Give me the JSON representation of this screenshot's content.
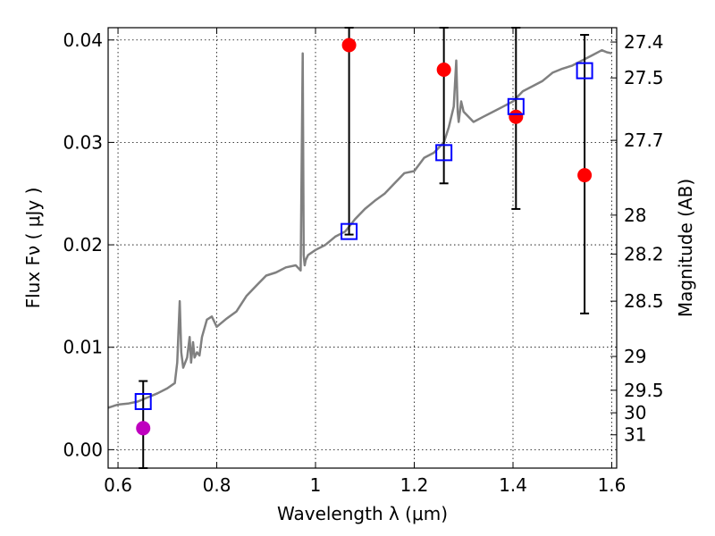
{
  "chart_data": {
    "type": "scatter",
    "title": "",
    "xlabel": "Wavelength  λ (μm)",
    "ylabel": "Flux  Fν  ( μJy )",
    "y2label": "Magnitude (AB)",
    "xlim": [
      0.58,
      1.61
    ],
    "ylim": [
      -0.0018,
      0.0412
    ],
    "grid": true,
    "x_ticks": [
      0.6,
      0.8,
      1.0,
      1.2,
      1.4,
      1.6
    ],
    "x_tick_labels": [
      "0.6",
      "0.8",
      "1",
      "1.2",
      "1.4",
      "1.6"
    ],
    "y_ticks": [
      0.0,
      0.01,
      0.02,
      0.03,
      0.04
    ],
    "y_tick_labels": [
      "0.00",
      "0.01",
      "0.02",
      "0.03",
      "0.04"
    ],
    "y2_ticks": [
      {
        "label": "27.4",
        "flux": 0.0398
      },
      {
        "label": "27.5",
        "flux": 0.0363
      },
      {
        "label": "27.7",
        "flux": 0.0302
      },
      {
        "label": "28",
        "flux": 0.0229
      },
      {
        "label": "28.2",
        "flux": 0.0191
      },
      {
        "label": "28.5",
        "flux": 0.0145
      },
      {
        "label": "29",
        "flux": 0.0091
      },
      {
        "label": "29.5",
        "flux": 0.0058
      },
      {
        "label": "30",
        "flux": 0.0036
      },
      {
        "label": "31",
        "flux": 0.00145
      }
    ],
    "series": [
      {
        "marker": "line",
        "color": "#808080",
        "x": [
          0.58,
          0.6,
          0.62,
          0.64,
          0.66,
          0.68,
          0.7,
          0.715,
          0.72,
          0.725,
          0.728,
          0.732,
          0.74,
          0.745,
          0.748,
          0.752,
          0.755,
          0.76,
          0.765,
          0.77,
          0.78,
          0.79,
          0.8,
          0.82,
          0.84,
          0.86,
          0.88,
          0.9,
          0.92,
          0.94,
          0.96,
          0.97,
          0.974,
          0.976,
          0.978,
          0.98,
          0.985,
          1.0,
          1.02,
          1.04,
          1.06,
          1.08,
          1.1,
          1.12,
          1.14,
          1.16,
          1.18,
          1.2,
          1.22,
          1.24,
          1.26,
          1.27,
          1.28,
          1.285,
          1.288,
          1.29,
          1.295,
          1.3,
          1.32,
          1.34,
          1.36,
          1.38,
          1.4,
          1.42,
          1.44,
          1.46,
          1.48,
          1.5,
          1.52,
          1.54,
          1.56,
          1.58,
          1.59,
          1.6
        ],
        "values": [
          0.0041,
          0.0044,
          0.0045,
          0.0047,
          0.0051,
          0.0055,
          0.006,
          0.0065,
          0.0085,
          0.0145,
          0.0095,
          0.008,
          0.009,
          0.011,
          0.0085,
          0.0105,
          0.009,
          0.0095,
          0.0092,
          0.011,
          0.0127,
          0.013,
          0.012,
          0.0128,
          0.0135,
          0.015,
          0.016,
          0.017,
          0.0173,
          0.0178,
          0.018,
          0.0175,
          0.0387,
          0.019,
          0.018,
          0.0185,
          0.019,
          0.0195,
          0.02,
          0.0208,
          0.0213,
          0.0225,
          0.0235,
          0.0243,
          0.025,
          0.026,
          0.027,
          0.0272,
          0.0285,
          0.029,
          0.03,
          0.0315,
          0.0335,
          0.038,
          0.033,
          0.032,
          0.034,
          0.033,
          0.032,
          0.0325,
          0.033,
          0.0335,
          0.034,
          0.035,
          0.0355,
          0.036,
          0.0368,
          0.0372,
          0.0375,
          0.038,
          0.0385,
          0.039,
          0.0388,
          0.0387
        ]
      },
      {
        "marker": "circle",
        "color": "#ff0000",
        "x": [
          1.068,
          1.26,
          1.406,
          1.545
        ],
        "values": [
          0.0395,
          0.0371,
          0.0325,
          0.0268
        ]
      },
      {
        "marker": "circle",
        "color": "#bf00bf",
        "x": [
          0.651
        ],
        "values": [
          0.0021
        ]
      },
      {
        "marker": "square",
        "color": "#0000ff",
        "x": [
          0.651,
          1.068,
          1.26,
          1.406,
          1.545
        ],
        "values": [
          0.0047,
          0.0213,
          0.029,
          0.0335,
          0.037
        ]
      }
    ],
    "error_bars": [
      {
        "x": 0.651,
        "low": -0.0018,
        "high": 0.0067
      },
      {
        "x": 1.068,
        "low": 0.021,
        "high": 0.0412
      },
      {
        "x": 1.26,
        "low": 0.026,
        "high": 0.0412
      },
      {
        "x": 1.406,
        "low": 0.0235,
        "high": 0.0412
      },
      {
        "x": 1.545,
        "low": 0.0133,
        "high": 0.0405
      }
    ]
  }
}
